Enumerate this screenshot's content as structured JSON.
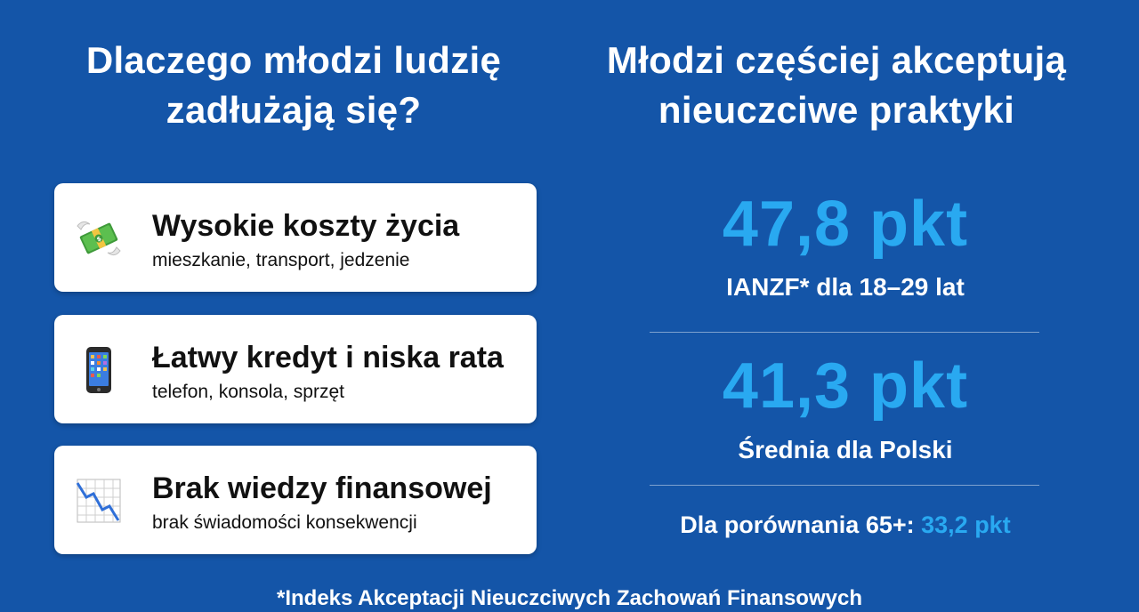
{
  "left": {
    "title": "Dlaczego młodzi ludzię\nzadłużają się?",
    "cards": [
      {
        "icon": "money-with-wings-icon",
        "title": "Wysokie koszty życia",
        "subtitle": "mieszkanie, transport, jedzenie"
      },
      {
        "icon": "mobile-phone-icon",
        "title": "Łatwy kredyt i niska rata",
        "subtitle": "telefon, konsola, sprzęt"
      },
      {
        "icon": "chart-decreasing-icon",
        "title": "Brak wiedzy finansowej",
        "subtitle": "brak świadomości konsekwencji"
      }
    ]
  },
  "right": {
    "title": "Młodzi częściej akceptują\nnieuczciwe praktyki",
    "stats": [
      {
        "value": "47,8 pkt",
        "label": "IANZF* dla 18–29 lat"
      },
      {
        "value": "41,3 pkt",
        "label": "Średnia dla Polski"
      }
    ],
    "comparison": {
      "label": "Dla porównania 65+:",
      "value": "33,2 pkt"
    }
  },
  "footnote": "*Indeks Akceptacji Nieuczciwych Zachowań Finansowych",
  "colors": {
    "background": "#1455a8",
    "accent": "#29a9f1",
    "card": "#ffffff"
  }
}
